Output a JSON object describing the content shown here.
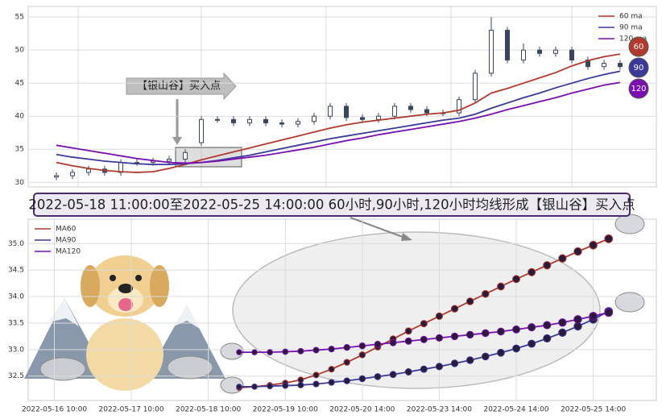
{
  "chart_data": [
    {
      "type": "candlestick",
      "open": [
        30.8,
        31,
        31.5,
        32,
        31.5,
        33,
        33,
        33.2,
        33.5,
        36,
        39.5,
        39.5,
        39,
        39.5,
        39,
        38.8,
        39.2,
        40,
        41.5,
        39.8,
        39.5,
        40,
        41.5,
        41,
        40.5,
        40.5,
        42.5,
        46.5,
        53,
        48.5,
        50,
        49.5,
        50,
        48.5,
        47.5,
        48
      ],
      "high": [
        31.5,
        32,
        32.5,
        32.5,
        33.5,
        33.5,
        33.7,
        34,
        35,
        40,
        40,
        40,
        40,
        40,
        39.5,
        39.7,
        40.5,
        42,
        42,
        40.3,
        40.5,
        42,
        42,
        41.5,
        41,
        43,
        47,
        55,
        53.5,
        51,
        50.5,
        50.5,
        50.5,
        49,
        48.5,
        48.5
      ],
      "low": [
        30.3,
        30.5,
        31,
        31,
        31,
        32.5,
        32.5,
        32.7,
        33,
        35.5,
        39,
        38.5,
        38.5,
        38.5,
        38.3,
        38.3,
        38.7,
        39.5,
        39.3,
        39,
        39,
        39.5,
        40.5,
        40,
        40,
        40,
        42,
        46,
        48,
        48,
        49,
        49,
        48,
        47,
        47,
        47
      ],
      "close": [
        31,
        31.5,
        32,
        31.5,
        33,
        33,
        33.2,
        33.5,
        34.5,
        39.5,
        39.5,
        39,
        39.5,
        39,
        38.8,
        39.2,
        40,
        41.5,
        39.8,
        39.5,
        40,
        41.5,
        41,
        40.5,
        40.5,
        42.5,
        46.5,
        53,
        48.5,
        50,
        49.5,
        50,
        48.5,
        47.5,
        48,
        47.5
      ],
      "candle_color": "#3a4660",
      "series": [
        {
          "name": "60 ma",
          "color": "#b03a2e",
          "values": [
            33,
            32.5,
            32.1,
            31.8,
            31.6,
            31.5,
            31.6,
            32.1,
            32.7,
            33.4,
            34.0,
            34.6,
            35.2,
            35.8,
            36.4,
            37.0,
            37.6,
            38.2,
            38.7,
            39.1,
            39.4,
            39.7,
            40.0,
            40.3,
            40.5,
            40.9,
            42.0,
            43.5,
            44.2,
            45.0,
            45.8,
            46.6,
            47.6,
            48.4,
            49.0,
            49.4
          ]
        },
        {
          "name": "90 ma",
          "color": "#3a3a9a",
          "values": [
            34.2,
            33.8,
            33.5,
            33.2,
            33.0,
            32.8,
            32.7,
            32.7,
            32.8,
            33.0,
            33.3,
            33.7,
            34.1,
            34.6,
            35.1,
            35.6,
            36.1,
            36.6,
            37.0,
            37.4,
            37.8,
            38.2,
            38.6,
            39.0,
            39.4,
            39.7,
            40.3,
            41.2,
            42.0,
            42.8,
            43.5,
            44.3,
            45.0,
            45.7,
            46.3,
            46.8
          ]
        },
        {
          "name": "120 ma",
          "color": "#7a10b0",
          "values": [
            35.6,
            35.2,
            34.8,
            34.4,
            34.0,
            33.6,
            33.3,
            33.0,
            32.9,
            33.0,
            33.2,
            33.5,
            33.8,
            34.1,
            34.5,
            34.9,
            35.3,
            35.8,
            36.3,
            36.7,
            37.2,
            37.6,
            38.0,
            38.4,
            38.8,
            39.2,
            39.7,
            40.3,
            41.0,
            41.6,
            42.2,
            42.8,
            43.5,
            44.1,
            44.7,
            45.1
          ]
        }
      ],
      "end_labels": [
        "60",
        "90",
        "120"
      ],
      "annotation": "【银山谷】买入点",
      "xlim": [
        -1.75,
        37.25
      ],
      "ylim": [
        29.3,
        56.6
      ],
      "yticks": [
        30,
        35,
        40,
        45,
        50,
        55
      ],
      "grid": true,
      "legend": "upper right"
    },
    {
      "type": "line",
      "title": "2022-05-18 11:00:00至2022-05-25 14:00:00 60小时,90小时,120小时均线形成【银山谷】买入点",
      "x": [
        12,
        13,
        14,
        15,
        16,
        17,
        18,
        19,
        20,
        21,
        22,
        23,
        24,
        25,
        26,
        27,
        28,
        29,
        30,
        31,
        32,
        33,
        34,
        35,
        36
      ],
      "series": [
        {
          "name": "MA60",
          "color": "#b03a2e",
          "values": [
            32.28,
            32.3,
            32.33,
            32.37,
            32.43,
            32.52,
            32.63,
            32.76,
            32.9,
            33.05,
            33.2,
            33.35,
            33.49,
            33.63,
            33.77,
            33.91,
            34.05,
            34.19,
            34.33,
            34.46,
            34.59,
            34.72,
            34.85,
            34.97,
            35.09
          ]
        },
        {
          "name": "MA90",
          "color": "#3a3a9a",
          "values": [
            32.3,
            32.3,
            32.31,
            32.32,
            32.33,
            32.35,
            32.38,
            32.41,
            32.45,
            32.49,
            32.53,
            32.58,
            32.63,
            32.68,
            32.74,
            32.8,
            32.87,
            32.94,
            33.02,
            33.11,
            33.21,
            33.32,
            33.44,
            33.57,
            33.72
          ]
        },
        {
          "name": "MA120",
          "color": "#7a10b0",
          "values": [
            32.95,
            32.95,
            32.95,
            32.96,
            32.97,
            32.99,
            33.01,
            33.04,
            33.07,
            33.1,
            33.13,
            33.16,
            33.19,
            33.22,
            33.25,
            33.28,
            33.31,
            33.34,
            33.38,
            33.42,
            33.46,
            33.51,
            33.57,
            33.63,
            33.7
          ]
        }
      ],
      "xlim": [
        -1.7,
        39.1
      ],
      "xticks": [
        {
          "value": 0,
          "label": "2022-05-16 10:00"
        },
        {
          "value": 5,
          "label": "2022-05-17 10:00"
        },
        {
          "value": 10,
          "label": "2022-05-18 10:00"
        },
        {
          "value": 15,
          "label": "2022-05-19 10:00"
        },
        {
          "value": 20,
          "label": "2022-05-20 14:00"
        },
        {
          "value": 25,
          "label": "2022-05-23 14:00"
        },
        {
          "value": 30,
          "label": "2022-05-24 14:00"
        },
        {
          "value": 35,
          "label": "2022-05-25 14:00"
        }
      ],
      "ylim": [
        32.04,
        35.46
      ],
      "yticks": [
        32.5,
        {
          "value": 33,
          "label": "33.0"
        },
        33.5,
        {
          "value": 34,
          "label": "34.0"
        },
        34.5,
        {
          "value": 35,
          "label": "35.0"
        }
      ],
      "grid": true,
      "markers": true,
      "legend": "upper left"
    }
  ]
}
